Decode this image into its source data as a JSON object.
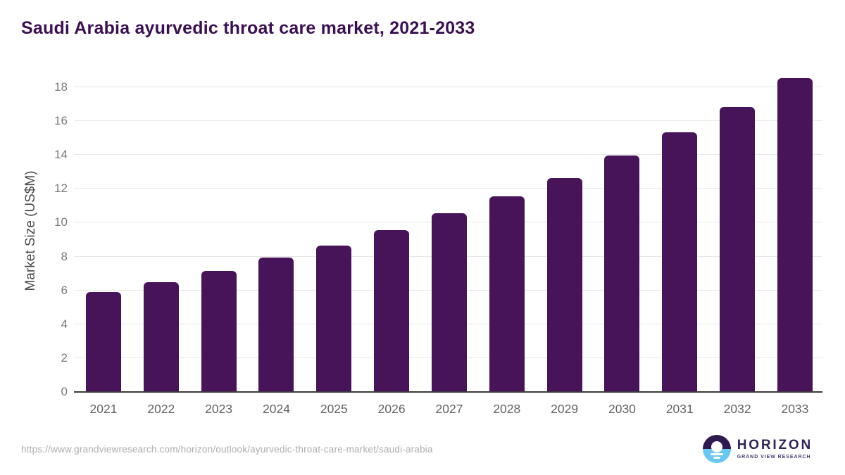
{
  "title": "Saudi Arabia ayurvedic throat care market, 2021-2033",
  "chart_data": {
    "type": "bar",
    "title": "Saudi Arabia ayurvedic throat care market, 2021-2033",
    "categories": [
      "2021",
      "2022",
      "2023",
      "2024",
      "2025",
      "2026",
      "2027",
      "2028",
      "2029",
      "2030",
      "2031",
      "2032",
      "2033"
    ],
    "values": [
      5.9,
      6.5,
      7.15,
      7.95,
      8.65,
      9.55,
      10.55,
      11.55,
      12.65,
      13.95,
      15.35,
      16.85,
      18.55
    ],
    "xlabel": "",
    "ylabel": "Market Size (US$M)",
    "ylim": [
      0,
      19
    ],
    "yticks": [
      0,
      2,
      4,
      6,
      8,
      10,
      12,
      14,
      16,
      18
    ],
    "grid": "horizontal gridlines on",
    "legend": "none",
    "bar_color": "#471459"
  },
  "footer": {
    "source_url": "https://www.grandviewresearch.com/horizon/outlook/ayurvedic-throat-care-market/saudi-arabia",
    "logo": {
      "name": "HORIZON",
      "subtitle": "GRAND VIEW RESEARCH"
    }
  },
  "colors": {
    "bar": "#471459",
    "title": "#3b1053",
    "grid": "#e8e8e8",
    "axis_line": "#3b3b3b",
    "ytick_label": "#7a7a7a",
    "xtick_label": "#636363",
    "axis_title": "#4a4a4a",
    "url_text": "#adadad",
    "logo_dark_text": "#312457",
    "logo_sub_text": "#473b70",
    "logo_purple": "#2e1a4e",
    "logo_blue": "#69c8f1"
  }
}
